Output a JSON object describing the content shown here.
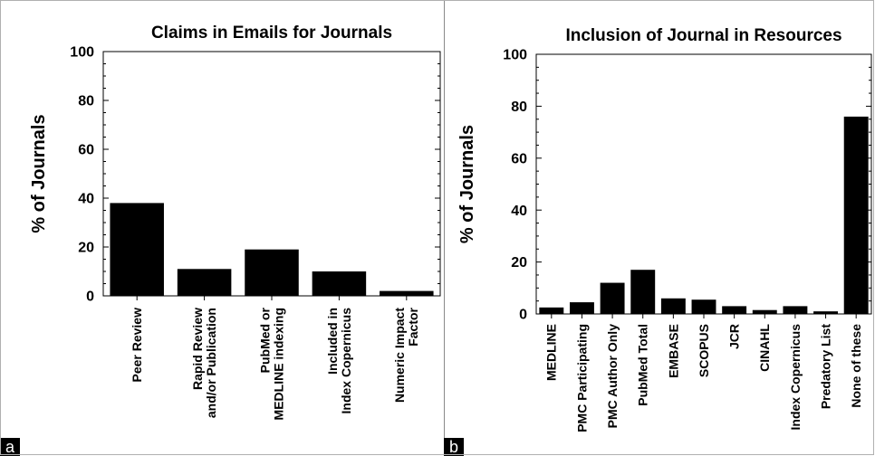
{
  "chart_data": [
    {
      "panel": "a",
      "type": "bar",
      "title": "Claims in Emails for Journals",
      "ylabel": "% of Journals",
      "xlabel": "",
      "ylim": [
        0,
        100
      ],
      "yticks": [
        0,
        20,
        40,
        60,
        80,
        100
      ],
      "grid": false,
      "categories": [
        [
          "Peer Review"
        ],
        [
          "Rapid Review",
          "and/or Publication"
        ],
        [
          "PubMed or",
          "MEDLINE indexing"
        ],
        [
          "Included in",
          "Index Copernicus"
        ],
        [
          "Numeric Impact",
          "Factor"
        ]
      ],
      "values": [
        38,
        11,
        19,
        10,
        2
      ],
      "bar_color": "#000000"
    },
    {
      "panel": "b",
      "type": "bar",
      "title": "Inclusion of Journal in Resources",
      "ylabel": "% of Journals",
      "xlabel": "",
      "ylim": [
        0,
        100
      ],
      "yticks": [
        0,
        20,
        40,
        60,
        80,
        100
      ],
      "grid": false,
      "categories": [
        [
          "MEDLINE"
        ],
        [
          "PMC Participating"
        ],
        [
          "PMC Author Only"
        ],
        [
          "PubMed Total"
        ],
        [
          "EMBASE"
        ],
        [
          "SCOPUS"
        ],
        [
          "JCR"
        ],
        [
          "CINAHL"
        ],
        [
          "Index Copernicus"
        ],
        [
          "Predatory List"
        ],
        [
          "None of these"
        ]
      ],
      "values": [
        2.5,
        4.5,
        12,
        17,
        6,
        5.5,
        3,
        1.5,
        3,
        1,
        76
      ],
      "bar_color": "#000000"
    }
  ],
  "panel_labels": {
    "a": "a",
    "b": "b"
  }
}
